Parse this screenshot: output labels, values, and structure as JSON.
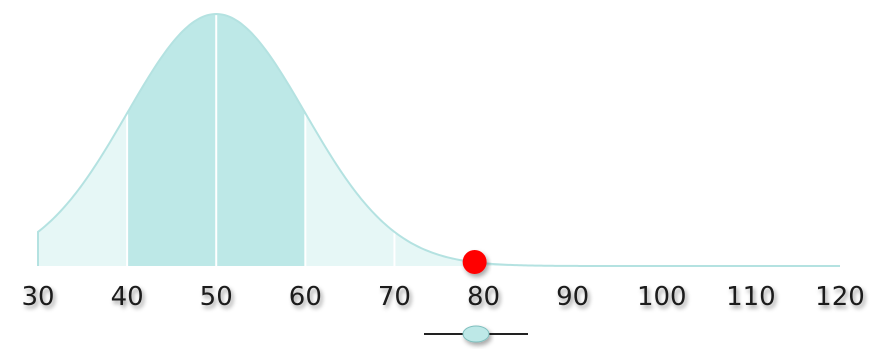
{
  "chart_data": {
    "type": "area",
    "title": "",
    "xlabel": "",
    "ylabel": "",
    "distribution": "normal",
    "mean": 50,
    "sd": 10,
    "xlim": [
      30,
      120
    ],
    "x_ticks": [
      30,
      40,
      50,
      60,
      70,
      80,
      90,
      100,
      110,
      120
    ],
    "tick_labels": [
      "30",
      "40",
      "50",
      "60",
      "70",
      "80",
      "90",
      "100",
      "110",
      "120"
    ],
    "marker": {
      "x": 79,
      "color": "#ff0000"
    },
    "bands": [
      {
        "from": 30,
        "to": 40,
        "color": "#e6f7f6"
      },
      {
        "from": 40,
        "to": 60,
        "color": "#bde8e7"
      },
      {
        "from": 60,
        "to": 120,
        "color": "#e6f7f6"
      }
    ],
    "grid": false,
    "legend": "none"
  },
  "slider": {
    "value_fraction": 0.5
  },
  "colors": {
    "curve": "#b4e2e1",
    "axis": "#000000",
    "divider": "#ffffff",
    "slider_thumb": "#bde8e7"
  }
}
